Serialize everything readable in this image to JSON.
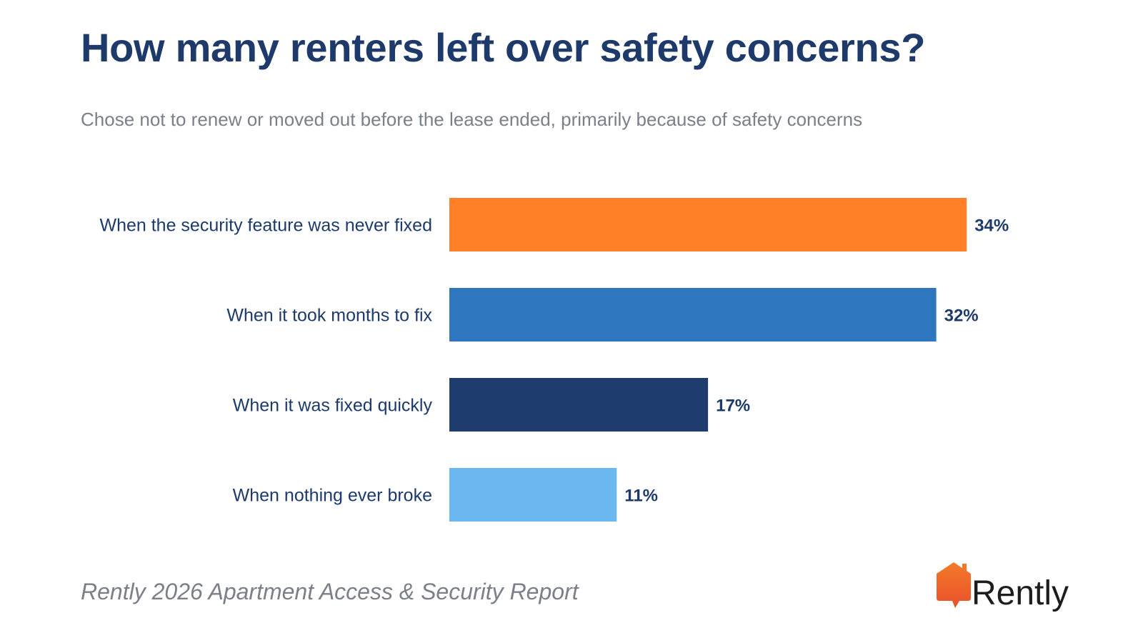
{
  "title": "How many renters left over safety concerns?",
  "subtitle": "Chose not to renew or moved out before the lease ended, primarily because of safety concerns",
  "footer": {
    "source": "Rently 2026 Apartment Access & Security Report",
    "brand": "Rently"
  },
  "chart_data": {
    "type": "bar",
    "orientation": "horizontal",
    "categories": [
      "When the security feature was never fixed",
      "When it took months to fix",
      "When it was fixed quickly",
      "When nothing ever broke"
    ],
    "values": [
      34,
      32,
      17,
      11
    ],
    "value_labels": [
      "34%",
      "32%",
      "17%",
      "11%"
    ],
    "colors": [
      "#ff7f27",
      "#2e76bd",
      "#1e3c6d",
      "#6ab8ef"
    ],
    "unit": "%",
    "grid": false,
    "legend": "none"
  },
  "colors": {
    "title": "#1d3a6b",
    "category_label": "#1d3a6b",
    "value_label": "#1d3a6b",
    "subtitle": "#7b7f87",
    "brand_icon": "#f06a24"
  },
  "icons": {
    "brand": "house-speech-bubble-logo-icon"
  }
}
